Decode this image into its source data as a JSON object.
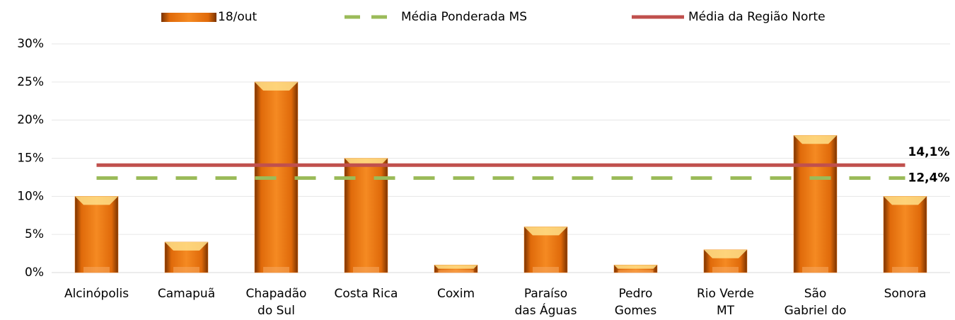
{
  "chart_data": {
    "type": "bar",
    "categories": [
      "Alcinópolis",
      "Camapuã",
      "Chapadão do Sul",
      "Costa Rica",
      "Coxim",
      "Paraíso das Águas",
      "Pedro Gomes",
      "Rio Verde MT",
      "São Gabriel do Oeste",
      "Sonora"
    ],
    "series": [
      {
        "name": "18/out",
        "color": "#e8720c",
        "values": [
          10,
          4,
          25,
          15,
          1,
          6,
          1,
          3,
          18,
          10
        ]
      }
    ],
    "reference_lines": [
      {
        "name": "Média Ponderada MS",
        "color": "#9bbb59",
        "dashed": true,
        "value": 12.4,
        "value_label": "12,4%"
      },
      {
        "name": "Média da Região Norte",
        "color": "#c0504d",
        "dashed": false,
        "value": 14.1,
        "value_label": "14,1%"
      }
    ],
    "ylim": [
      0,
      30
    ],
    "yticks": [
      {
        "value": 0,
        "label": "0%"
      },
      {
        "value": 5,
        "label": "5%"
      },
      {
        "value": 10,
        "label": "10%"
      },
      {
        "value": 15,
        "label": "15%"
      },
      {
        "value": 20,
        "label": "20%"
      },
      {
        "value": 25,
        "label": "25%"
      },
      {
        "value": 30,
        "label": "30%"
      }
    ],
    "grid": true
  }
}
